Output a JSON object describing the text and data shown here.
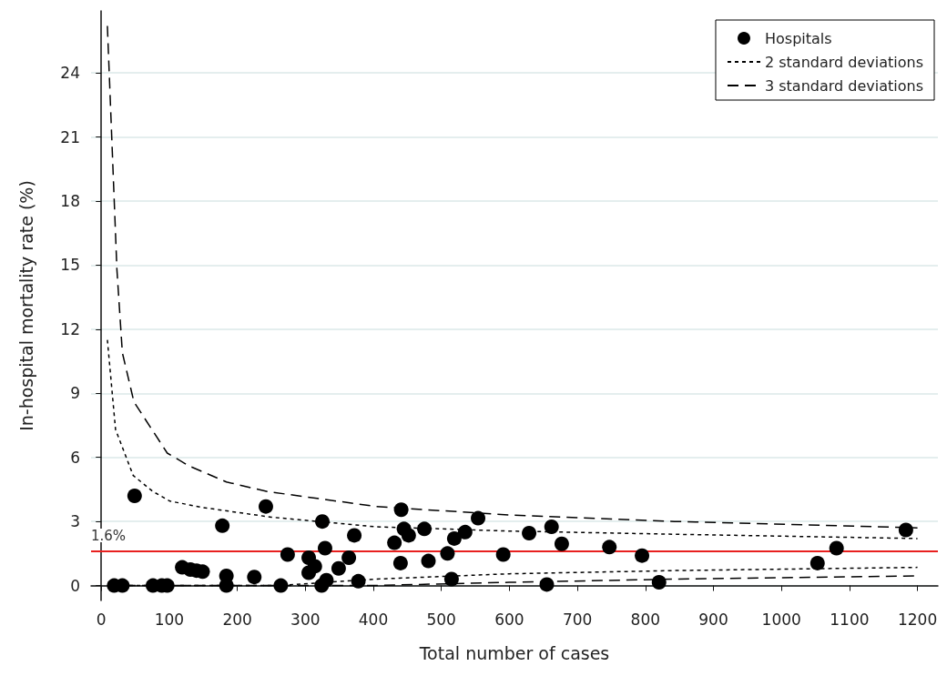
{
  "chart_data": {
    "type": "scatter",
    "xlabel": "Total number of cases",
    "ylabel": "In-hospital mortality rate (%)",
    "xlim": [
      -15,
      1230
    ],
    "ylim": [
      -0.7,
      26.9
    ],
    "xticks": [
      0,
      100,
      200,
      300,
      400,
      500,
      600,
      700,
      800,
      900,
      1000,
      1100,
      1200
    ],
    "yticks": [
      0,
      3,
      6,
      9,
      12,
      15,
      18,
      21,
      24
    ],
    "grid": "y",
    "legend": "top right",
    "ref_lines": [
      {
        "axis": "y",
        "value": 1.6,
        "label": "1.6%",
        "color": "#e8201f"
      }
    ],
    "series": [
      {
        "name": "Hospitals",
        "type": "scatter",
        "marker": "circle",
        "color": "#000000",
        "x": [
          19,
          31,
          76,
          89,
          97,
          119,
          131,
          140,
          149,
          49,
          178,
          184,
          184,
          225,
          242,
          264,
          274,
          305,
          305,
          314,
          325,
          329,
          324,
          331,
          349,
          364,
          372,
          378,
          441,
          554,
          445,
          452,
          475,
          431,
          535,
          519,
          509,
          440,
          481,
          515,
          629,
          662,
          591,
          677,
          747,
          795,
          655,
          820,
          1183,
          1081,
          1053
        ],
        "values": [
          0,
          0,
          0,
          0,
          0,
          0.85,
          0.75,
          0.7,
          0.65,
          4.2,
          2.8,
          0.45,
          0,
          0.4,
          3.7,
          0,
          1.45,
          0.6,
          1.3,
          0.9,
          3.0,
          1.75,
          0,
          0.25,
          0.8,
          1.3,
          2.35,
          0.2,
          3.55,
          3.15,
          2.65,
          2.35,
          2.65,
          2.0,
          2.5,
          2.2,
          1.5,
          1.05,
          1.15,
          0.3,
          2.45,
          2.75,
          1.45,
          1.95,
          1.8,
          1.4,
          0.05,
          0.15,
          2.6,
          1.75,
          1.05
        ]
      },
      {
        "name": "2 standard deviations",
        "type": "line",
        "marker": "none",
        "line_style": "dotted",
        "color": "#000000",
        "x": [
          9,
          21,
          47,
          76,
          101,
          150,
          250,
          404,
          600,
          843,
          1200
        ],
        "values": [
          11.5,
          7.3,
          5.15,
          4.4,
          3.95,
          3.65,
          3.2,
          2.75,
          2.55,
          2.4,
          2.2
        ]
      },
      {
        "type": "line",
        "marker": "none",
        "line_style": "dotted",
        "color": "#000000",
        "x": [
          9,
          260,
          404,
          600,
          843,
          1200
        ],
        "values": [
          0,
          0,
          0.3,
          0.55,
          0.7,
          0.85
        ]
      },
      {
        "name": "3 standard deviations",
        "type": "line",
        "marker": "none",
        "line_style": "dashed",
        "color": "#000000",
        "x": [
          9,
          23,
          31,
          48,
          97,
          129,
          184,
          244,
          404,
          600,
          843,
          1200
        ],
        "values": [
          26.2,
          14.8,
          10.9,
          8.6,
          6.2,
          5.6,
          4.85,
          4.4,
          3.7,
          3.3,
          3.0,
          2.7
        ]
      },
      {
        "type": "line",
        "marker": "none",
        "line_style": "dashed",
        "color": "#000000",
        "x": [
          9,
          400,
          600,
          843,
          1200
        ],
        "values": [
          0,
          0,
          0.15,
          0.3,
          0.45
        ]
      }
    ]
  }
}
